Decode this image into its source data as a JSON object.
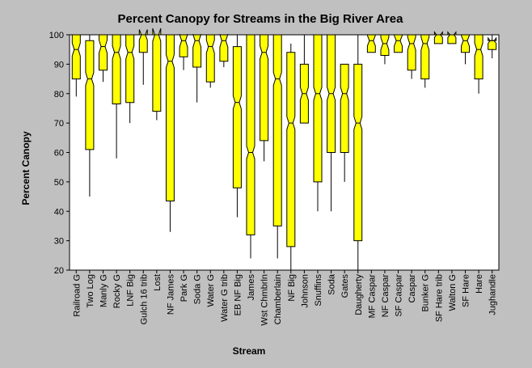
{
  "chart_data": {
    "type": "box",
    "title": "Percent Canopy for Streams in the Big River Area",
    "xlabel": "Stream",
    "ylabel": "Percent Canopy",
    "ylim": [
      20,
      100
    ],
    "yticks": [
      20,
      30,
      40,
      50,
      60,
      70,
      80,
      90,
      100
    ],
    "grid": false,
    "colors": {
      "box_fill": "#ffff00",
      "box_stroke": "#000000",
      "plot_bg": "#ffffff",
      "page_bg": "#c0c0c0"
    },
    "categories": [
      "Railroad G",
      "Two Log",
      "Manly G",
      "Rocky G",
      "LNF Big",
      "Gulch 16 trib",
      "Lost",
      "NF James",
      "Park G",
      "Soda G",
      "Water G",
      "Water G trib",
      "EB NF Big",
      "James",
      "Wst Chmbrln",
      "Chamberlain",
      "NF Big",
      "Johnson",
      "Snuffins",
      "Soda",
      "Gates",
      "Daugherty",
      "MF Caspar",
      "NF Caspar",
      "SF Caspar",
      "Caspar",
      "Bunker G",
      "SF Hare trib",
      "Walton G",
      "SF Hare",
      "Hare",
      "Jughandle"
    ],
    "boxes": [
      {
        "min": 79,
        "q1": 85,
        "median": 95,
        "q3": 100,
        "max": 100
      },
      {
        "min": 45,
        "q1": 61,
        "median": 85,
        "q3": 98,
        "max": 100
      },
      {
        "min": 84,
        "q1": 88,
        "median": 96,
        "q3": 100,
        "max": 100
      },
      {
        "min": 58,
        "q1": 76.5,
        "median": 94,
        "q3": 100,
        "max": 100
      },
      {
        "min": 70,
        "q1": 77,
        "median": 94,
        "q3": 100,
        "max": 100
      },
      {
        "min": 83,
        "q1": 94,
        "median": 100,
        "q3": 100,
        "max": 100
      },
      {
        "min": 71,
        "q1": 74,
        "median": 100,
        "q3": 100,
        "max": 100
      },
      {
        "min": 33,
        "q1": 43.5,
        "median": 91,
        "q3": 100,
        "max": 100
      },
      {
        "min": 88,
        "q1": 92.5,
        "median": 98,
        "q3": 100,
        "max": 100
      },
      {
        "min": 77,
        "q1": 89,
        "median": 98,
        "q3": 100,
        "max": 100
      },
      {
        "min": 82,
        "q1": 84,
        "median": 96,
        "q3": 100,
        "max": 100
      },
      {
        "min": 89,
        "q1": 91,
        "median": 98,
        "q3": 100,
        "max": 100
      },
      {
        "min": 38,
        "q1": 48,
        "median": 77,
        "q3": 96,
        "max": 100
      },
      {
        "min": 24,
        "q1": 32,
        "median": 60,
        "q3": 100,
        "max": 100
      },
      {
        "min": 57,
        "q1": 64,
        "median": 94,
        "q3": 100,
        "max": 100
      },
      {
        "min": 24,
        "q1": 35,
        "median": 85,
        "q3": 100,
        "max": 100
      },
      {
        "min": 20,
        "q1": 28,
        "median": 70,
        "q3": 94,
        "max": 97
      },
      {
        "min": 70,
        "q1": 70,
        "median": 80,
        "q3": 90,
        "max": 100
      },
      {
        "min": 40,
        "q1": 50,
        "median": 80,
        "q3": 100,
        "max": 100
      },
      {
        "min": 40,
        "q1": 60,
        "median": 80,
        "q3": 100,
        "max": 100
      },
      {
        "min": 50,
        "q1": 60,
        "median": 80,
        "q3": 90,
        "max": 90
      },
      {
        "min": 20,
        "q1": 30,
        "median": 70,
        "q3": 90,
        "max": 100
      },
      {
        "min": 94,
        "q1": 94,
        "median": 98,
        "q3": 100,
        "max": 100
      },
      {
        "min": 90,
        "q1": 93,
        "median": 97,
        "q3": 100,
        "max": 100
      },
      {
        "min": 94,
        "q1": 94,
        "median": 98,
        "q3": 100,
        "max": 100
      },
      {
        "min": 85,
        "q1": 88,
        "median": 97,
        "q3": 100,
        "max": 100
      },
      {
        "min": 82,
        "q1": 85,
        "median": 97,
        "q3": 100,
        "max": 100
      },
      {
        "min": 97,
        "q1": 97,
        "median": 100,
        "q3": 100,
        "max": 100
      },
      {
        "min": 97,
        "q1": 97,
        "median": 100,
        "q3": 100,
        "max": 100
      },
      {
        "min": 90,
        "q1": 94,
        "median": 98,
        "q3": 100,
        "max": 100
      },
      {
        "min": 80,
        "q1": 85,
        "median": 95,
        "q3": 100,
        "max": 100
      },
      {
        "min": 92,
        "q1": 95,
        "median": 98,
        "q3": 98,
        "max": 100
      }
    ]
  }
}
